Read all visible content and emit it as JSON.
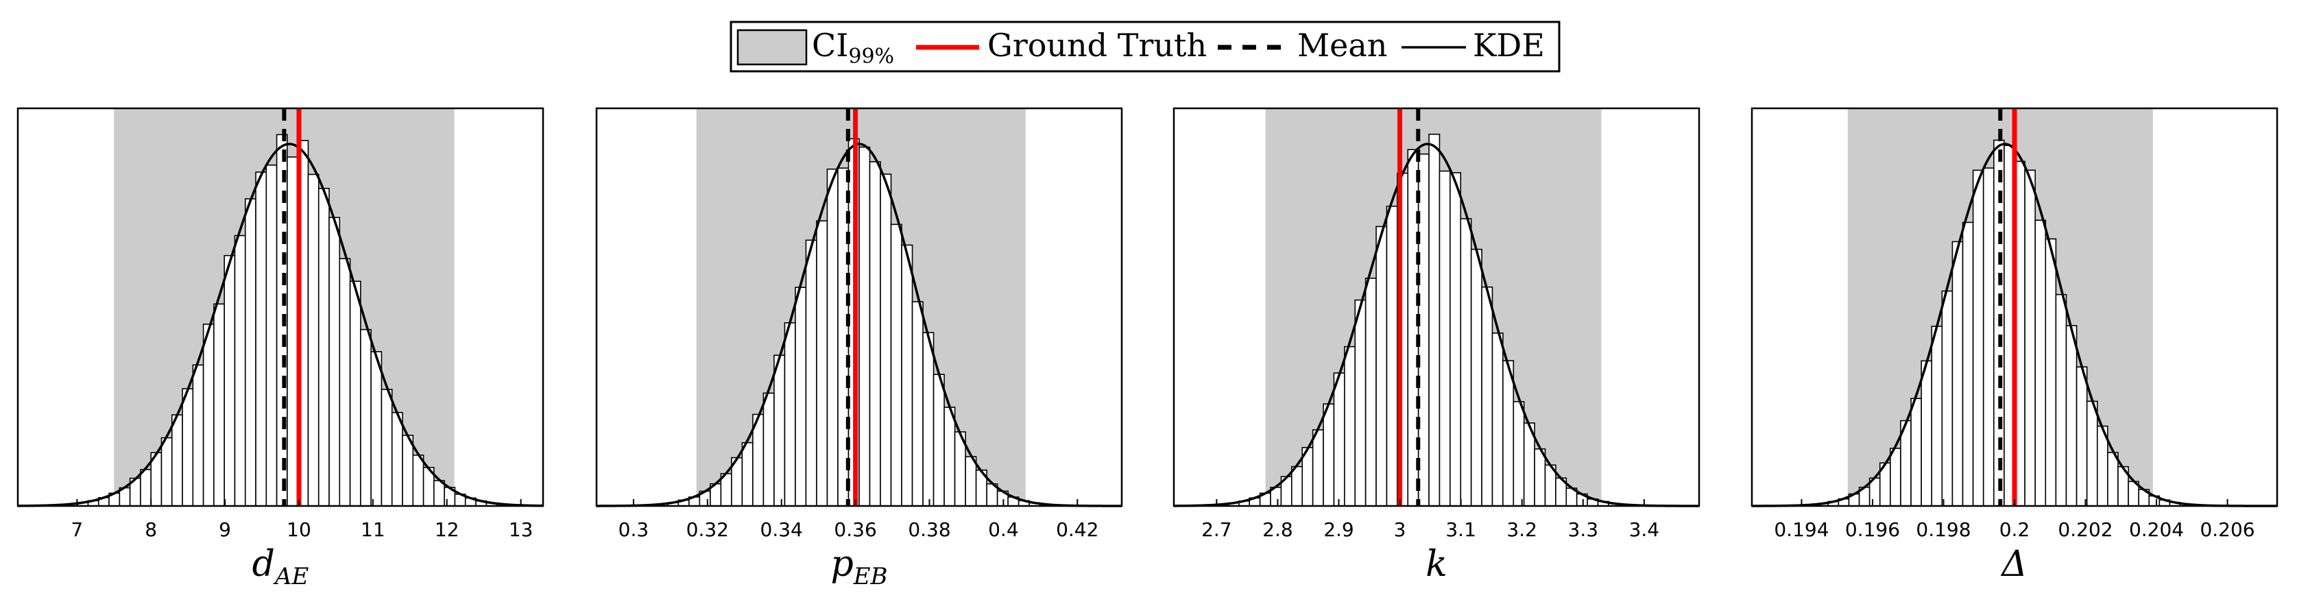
{
  "legend": {
    "ci_label": "CI",
    "ci_sub": "99%",
    "truth_label": "Ground Truth",
    "mean_label": "Mean",
    "kde_label": "KDE"
  },
  "colors": {
    "ci_fill": "#cccccc",
    "truth": "#ff0000",
    "mean": "#000000",
    "kde": "#000000",
    "bar_fill": "#ffffff",
    "bar_stroke": "#000000"
  },
  "chart_data": [
    {
      "type": "bar",
      "title": "",
      "xlabel_main": "d",
      "xlabel_sub": "AE",
      "xlabel": "d_AE",
      "ylabel": "",
      "xlim": [
        6.2,
        13.3
      ],
      "xticks": [
        7,
        8,
        9,
        10,
        11,
        12,
        13
      ],
      "tick_labels": [
        "7",
        "8",
        "9",
        "10",
        "11",
        "12",
        "13"
      ],
      "ci": [
        7.5,
        12.1
      ],
      "mean": 9.8,
      "truth": 10.0,
      "hist_range": [
        6.3,
        13.1
      ],
      "sd": 0.9,
      "skew": 0.1
    },
    {
      "type": "bar",
      "title": "",
      "xlabel_main": "p",
      "xlabel_sub": "EB",
      "xlabel": "p_EB",
      "ylabel": "",
      "xlim": [
        0.29,
        0.432
      ],
      "xticks": [
        0.3,
        0.32,
        0.34,
        0.36,
        0.38,
        0.4,
        0.42
      ],
      "tick_labels": [
        "0.3",
        "0.32",
        "0.34",
        "0.36",
        "0.38",
        "0.4",
        "0.42"
      ],
      "ci": [
        0.317,
        0.406
      ],
      "mean": 0.358,
      "truth": 0.36,
      "hist_range": [
        0.292,
        0.43
      ],
      "sd": 0.016,
      "skew": 0.25
    },
    {
      "type": "bar",
      "title": "",
      "xlabel_main": "k",
      "xlabel_sub": "",
      "xlabel": "k",
      "ylabel": "",
      "xlim": [
        2.63,
        3.49
      ],
      "xticks": [
        2.7,
        2.8,
        2.9,
        3.0,
        3.1,
        3.2,
        3.3,
        3.4
      ],
      "tick_labels": [
        "2.7",
        "2.8",
        "2.9",
        "3",
        "3.1",
        "3.2",
        "3.3",
        "3.4"
      ],
      "ci": [
        2.78,
        3.33
      ],
      "mean": 3.03,
      "truth": 3.0,
      "hist_range": [
        2.65,
        3.48
      ],
      "sd": 0.1,
      "skew": 0.2
    },
    {
      "type": "bar",
      "title": "",
      "xlabel_main": "Δ",
      "xlabel_sub": "",
      "xlabel": "Δ",
      "ylabel": "",
      "xlim": [
        0.1926,
        0.2074
      ],
      "xticks": [
        0.194,
        0.196,
        0.198,
        0.2,
        0.202,
        0.204,
        0.206
      ],
      "tick_labels": [
        "0.194",
        "0.196",
        "0.198",
        "0.2",
        "0.202",
        "0.204",
        "0.206"
      ],
      "ci": [
        0.1953,
        0.2039
      ],
      "mean": 0.1996,
      "truth": 0.2,
      "hist_range": [
        0.193,
        0.207
      ],
      "sd": 0.0016,
      "skew": 0.1
    }
  ]
}
